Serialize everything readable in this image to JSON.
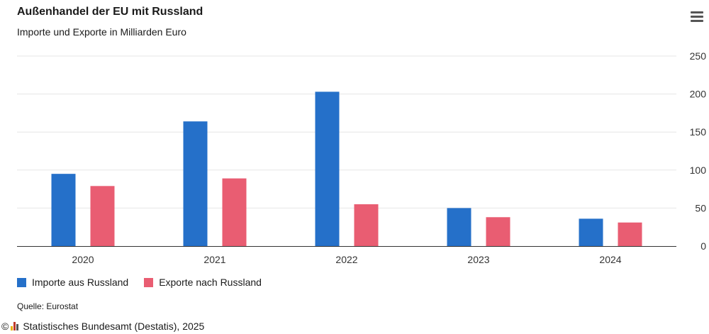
{
  "title": "Außenhandel der EU mit Russland",
  "subtitle": "Importe und Exporte in Milliarden Euro",
  "menu_icon": "hamburger-menu-icon",
  "source": "Quelle: Eurostat",
  "credit": {
    "copyright": "©",
    "logo_icon": "destatis-logo-icon",
    "text": "Statistisches Bundesamt (Destatis), 2025"
  },
  "colors": {
    "imports": "#2570c9",
    "exports": "#e95d72",
    "grid": "#e6e6e6",
    "axis": "#333333"
  },
  "chart_data": {
    "type": "bar",
    "categories": [
      "2020",
      "2021",
      "2022",
      "2023",
      "2024"
    ],
    "series": [
      {
        "name": "Importe aus Russland",
        "values": [
          95,
          164,
          203,
          50,
          36
        ]
      },
      {
        "name": "Exporte nach Russland",
        "values": [
          79,
          89,
          55,
          38,
          31
        ]
      }
    ],
    "ylim": [
      0,
      250
    ],
    "yticks": [
      0,
      50,
      100,
      150,
      200,
      250
    ],
    "grid": true,
    "legend": "bottom-left"
  }
}
